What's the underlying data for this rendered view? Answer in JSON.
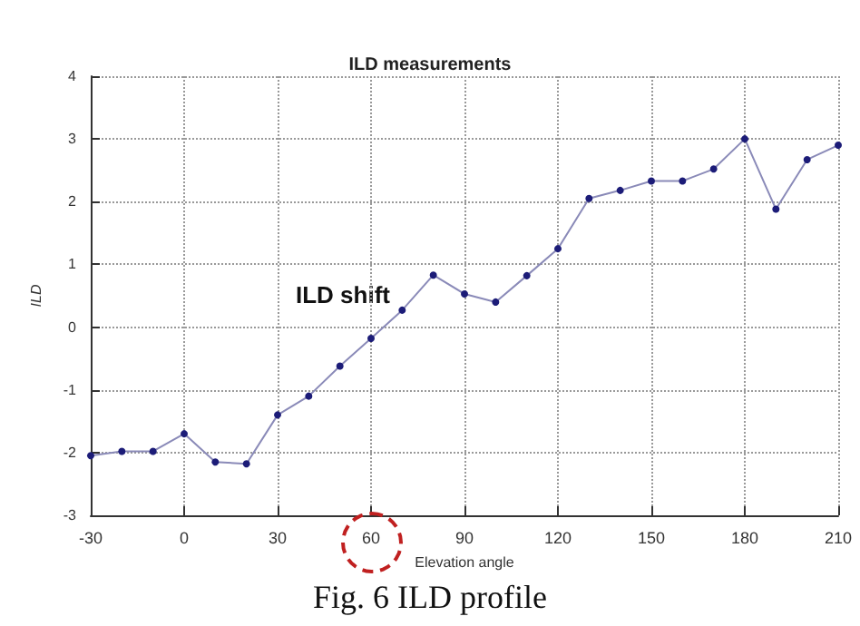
{
  "chart_data": {
    "type": "line",
    "title": "ILD measurements",
    "xlabel": "Elevation angle",
    "ylabel": "ILD",
    "x": [
      -30,
      -20,
      -10,
      0,
      10,
      20,
      30,
      40,
      50,
      60,
      70,
      80,
      90,
      100,
      110,
      120,
      130,
      140,
      150,
      160,
      170,
      180,
      190,
      200,
      210
    ],
    "series": [
      {
        "color": "#1c1c78",
        "values": [
          -2.05,
          -1.98,
          -1.98,
          -1.7,
          -2.15,
          -2.18,
          -1.4,
          -1.1,
          -0.62,
          -0.18,
          0.27,
          0.83,
          0.53,
          0.4,
          0.82,
          1.25,
          2.05,
          2.18,
          2.33,
          2.33,
          2.52,
          3.0,
          1.88,
          2.67,
          2.9
        ]
      }
    ],
    "xlim": [
      -30,
      210
    ],
    "xticks": [
      -30,
      0,
      30,
      60,
      90,
      120,
      150,
      180,
      210
    ],
    "ylim": [
      -3,
      4
    ],
    "yticks": [
      -3,
      -2,
      -1,
      0,
      1,
      2,
      3,
      4
    ],
    "grid": true,
    "marker": "circle",
    "line_style": "solid",
    "annotations": [
      "ILD shift",
      "Fig. 6 ILD profile"
    ]
  }
}
